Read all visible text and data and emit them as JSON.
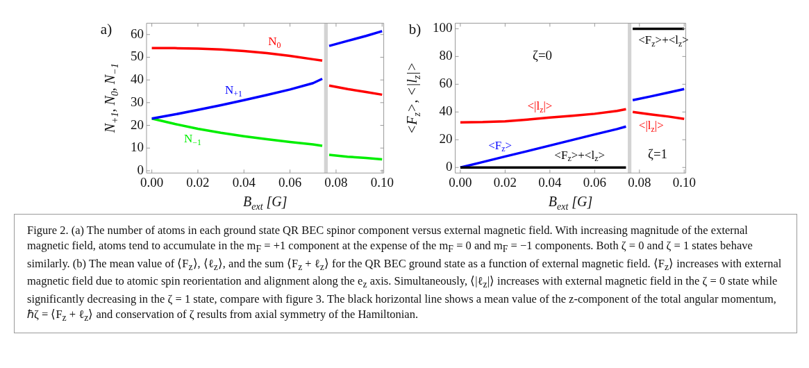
{
  "chart_data": [
    {
      "type": "line",
      "title": "a)",
      "xlabel": "B$_{ext}$ [G]",
      "ylabel": "N$_{+1}$, N$_{0}$, N$_{−1}$",
      "xlim": [
        -0.0023,
        0.1007
      ],
      "ylim": [
        -1,
        65
      ],
      "xticks": [
        {
          "value": 0,
          "label": "0.00"
        },
        {
          "value": 0.02,
          "label": "0.02"
        },
        {
          "value": 0.04,
          "label": "0.04"
        },
        {
          "value": 0.06,
          "label": "0.06"
        },
        {
          "value": 0.08,
          "label": "0.08"
        },
        {
          "value": 0.1,
          "label": "0.10"
        }
      ],
      "yticks": [
        0,
        10,
        20,
        30,
        40,
        50,
        60
      ],
      "bands": [
        {
          "axis": "x",
          "from": 0.0748,
          "to": 0.0764,
          "color": "#d3d3d3"
        }
      ],
      "series": [
        {
          "name": "N$_{0}$",
          "color": "#ff0000",
          "x": [
            0,
            0.01,
            0.02,
            0.03,
            0.04,
            0.05,
            0.06,
            0.07,
            0.074
          ],
          "values": [
            54,
            54,
            53.8,
            53.4,
            52.7,
            51.8,
            50.6,
            49.1,
            48.5
          ]
        },
        {
          "color": "#ff0000",
          "x": [
            0.077,
            0.085,
            0.093,
            0.1
          ],
          "values": [
            37.5,
            36,
            34.7,
            33.5
          ]
        },
        {
          "name": "N$_{+1}$",
          "color": "#0000ff",
          "x": [
            0,
            0.01,
            0.02,
            0.03,
            0.04,
            0.05,
            0.06,
            0.07,
            0.074
          ],
          "values": [
            23,
            24.8,
            26.8,
            28.9,
            31.1,
            33.4,
            35.8,
            38.6,
            40.5
          ]
        },
        {
          "color": "#0000ff",
          "x": [
            0.077,
            0.085,
            0.093,
            0.1
          ],
          "values": [
            55,
            57.2,
            59.4,
            61.5
          ]
        },
        {
          "name": "N$_{−1}$",
          "color": "#00ee00",
          "x": [
            0,
            0.01,
            0.02,
            0.03,
            0.04,
            0.05,
            0.06,
            0.07,
            0.074
          ],
          "values": [
            23,
            20.6,
            18.5,
            16.7,
            15.2,
            13.9,
            12.7,
            11.6,
            11
          ]
        },
        {
          "color": "#00ee00",
          "x": [
            0.077,
            0.085,
            0.093,
            0.1
          ],
          "values": [
            7,
            6.2,
            5.6,
            5
          ]
        }
      ],
      "annotations": [
        "Figure 2. (a) The number of atoms in each ground state QR BEC spinor component versus external magnetic field. With increasing magnitude of the external magnetic field, atoms tend to accumulate in the m$_{F}$ = +1 component at the expense of the m$_{F}$ = 0 and m$_{F}$ = −1 components. Both ζ = 0 and ζ = 1 states behave similarly. (b) The mean value of ⟨F$_{z}$⟩, ⟨ℓ$_{z}$⟩, and the sum ⟨F$_{z}$ + ℓ$_{z}$⟩ for the QR BEC ground state as a function of external magnetic field. ⟨F$_{z}$⟩ increases with external magnetic field due to atomic spin reorientation and alignment along the e$_{z}$ axis. Simultaneously, ⟨|ℓ$_{z}$|⟩ increases with external magnetic field in the ζ = 0 state while significantly decreasing in the ζ = 1 state, compare with figure 3. The black horizontal line shows a mean value of the z-component of the total angular momentum, ℏζ = ⟨F$_{z}$ + ℓ$_{z}$⟩ and conservation of ζ results from axial symmetry of the Hamiltonian."
      ]
    },
    {
      "type": "line",
      "title": "b)",
      "xlabel": "B$_{ext}$ [G]",
      "ylabel": "<F$_{z}$>, <|l$_{z}$|>",
      "xlim": [
        -0.0023,
        0.1007
      ],
      "ylim": [
        -4,
        104
      ],
      "xticks": [
        {
          "value": 0,
          "label": "0.00"
        },
        {
          "value": 0.02,
          "label": "0.02"
        },
        {
          "value": 0.04,
          "label": "0.04"
        },
        {
          "value": 0.06,
          "label": "0.06"
        },
        {
          "value": 0.08,
          "label": "0.08"
        },
        {
          "value": 0.1,
          "label": "0.10"
        }
      ],
      "yticks": [
        0,
        20,
        40,
        60,
        80,
        100
      ],
      "bands": [
        {
          "axis": "x",
          "from": 0.0748,
          "to": 0.0764,
          "color": "#d3d3d3"
        }
      ],
      "series": [
        {
          "name": "<F$_{z}$>+<l$_{z}$>",
          "color": "#000000",
          "x": [
            0,
            0.074
          ],
          "values": [
            0,
            0
          ]
        },
        {
          "name": "<F$_{z}$>+<l$_{z}$>",
          "color": "#000000",
          "x": [
            0.077,
            0.1
          ],
          "values": [
            100,
            100
          ]
        },
        {
          "name": "<|l$_{z}$|>",
          "color": "#ff0000",
          "x": [
            0,
            0.01,
            0.02,
            0.03,
            0.04,
            0.05,
            0.06,
            0.07,
            0.074
          ],
          "values": [
            32.5,
            32.7,
            33.3,
            34.5,
            36,
            37.3,
            38.7,
            40.8,
            42
          ]
        },
        {
          "name": "<|l$_{z}$|>",
          "color": "#ff0000",
          "x": [
            0.077,
            0.085,
            0.093,
            0.1
          ],
          "values": [
            40,
            38.3,
            36.7,
            35
          ]
        },
        {
          "name": "<F$_{z}$>",
          "color": "#0000ff",
          "x": [
            0,
            0.01,
            0.02,
            0.03,
            0.04,
            0.05,
            0.06,
            0.07,
            0.074
          ],
          "values": [
            0,
            3.9,
            7.9,
            11.8,
            15.8,
            19.8,
            23.8,
            27.7,
            29.5
          ]
        },
        {
          "color": "#0000ff",
          "x": [
            0.077,
            0.085,
            0.093,
            0.1
          ],
          "values": [
            48.5,
            51.2,
            54,
            56.5
          ]
        }
      ],
      "annotations": [
        "ζ=0",
        "ζ=1"
      ]
    }
  ]
}
